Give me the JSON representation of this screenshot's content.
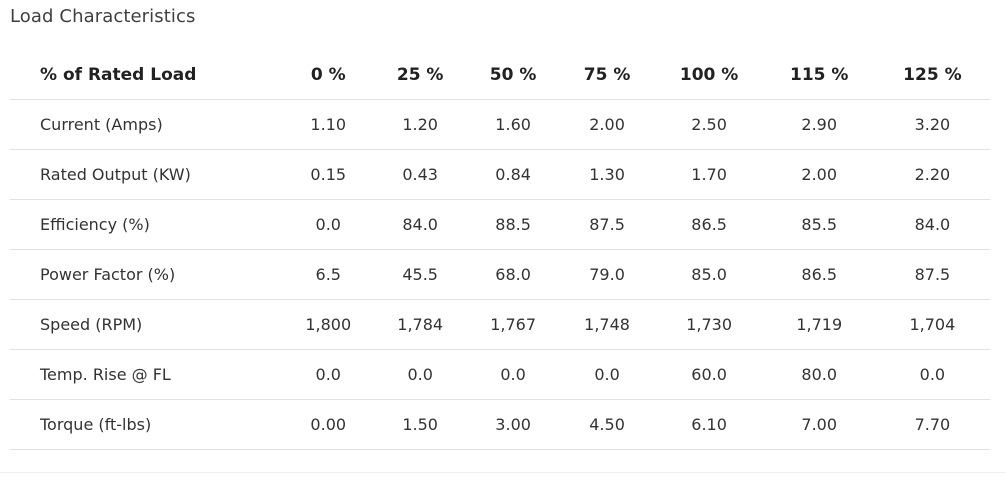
{
  "section": {
    "title": "Load Characteristics"
  },
  "table": {
    "columns": [
      "% of Rated Load",
      "0 %",
      "25 %",
      "50 %",
      "75 %",
      "100 %",
      "115 %",
      "125 %"
    ],
    "rows": [
      {
        "label": "Current (Amps)",
        "values": [
          "1.10",
          "1.20",
          "1.60",
          "2.00",
          "2.50",
          "2.90",
          "3.20"
        ]
      },
      {
        "label": "Rated Output (KW)",
        "values": [
          "0.15",
          "0.43",
          "0.84",
          "1.30",
          "1.70",
          "2.00",
          "2.20"
        ]
      },
      {
        "label": "Efficiency (%)",
        "values": [
          "0.0",
          "84.0",
          "88.5",
          "87.5",
          "86.5",
          "85.5",
          "84.0"
        ]
      },
      {
        "label": "Power Factor (%)",
        "values": [
          "6.5",
          "45.5",
          "68.0",
          "79.0",
          "85.0",
          "86.5",
          "87.5"
        ]
      },
      {
        "label": "Speed (RPM)",
        "values": [
          "1,800",
          "1,784",
          "1,767",
          "1,748",
          "1,730",
          "1,719",
          "1,704"
        ]
      },
      {
        "label": "Temp. Rise @ FL",
        "values": [
          "0.0",
          "0.0",
          "0.0",
          "0.0",
          "60.0",
          "80.0",
          "0.0"
        ]
      },
      {
        "label": "Torque (ft-lbs)",
        "values": [
          "0.00",
          "1.50",
          "3.00",
          "4.50",
          "6.10",
          "7.00",
          "7.70"
        ]
      }
    ]
  }
}
